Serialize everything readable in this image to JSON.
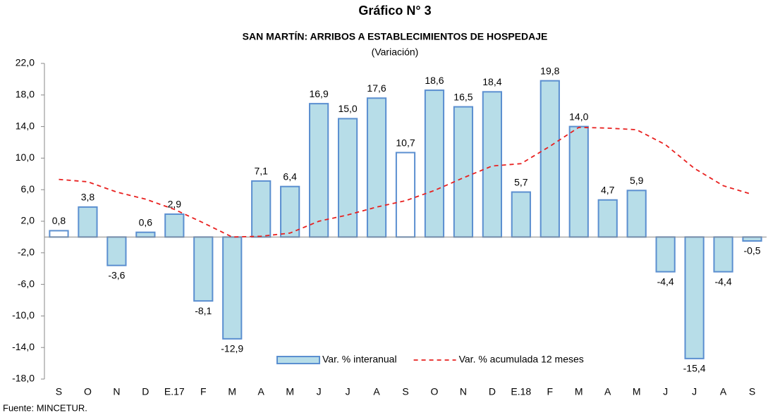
{
  "chart_data": {
    "type": "bar",
    "title": "Gráfico N° 3",
    "subtitle": "SAN MARTÍN: ARRIBOS A ESTABLECIMIENTOS DE HOSPEDAJE",
    "unit_note": "(Variación)",
    "source": "Fuente: MINCETUR.",
    "categories": [
      "S",
      "O",
      "N",
      "D",
      "E.17",
      "F",
      "M",
      "A",
      "M",
      "J",
      "J",
      "A",
      "S",
      "O",
      "N",
      "D",
      "E.18",
      "F",
      "M",
      "A",
      "M",
      "J",
      "J",
      "A",
      "S"
    ],
    "ylim": [
      -18,
      22
    ],
    "yticks": [
      {
        "value": -18,
        "label": "-18,0"
      },
      {
        "value": -14,
        "label": "-14,0"
      },
      {
        "value": -10,
        "label": "-10,0"
      },
      {
        "value": -6,
        "label": "-6,0"
      },
      {
        "value": -2,
        "label": "-2,0"
      },
      {
        "value": 2,
        "label": "2,0"
      },
      {
        "value": 6,
        "label": "6,0"
      },
      {
        "value": 10,
        "label": "10,0"
      },
      {
        "value": 14,
        "label": "14,0"
      },
      {
        "value": 18,
        "label": "18,0"
      },
      {
        "value": 22,
        "label": "22,0"
      }
    ],
    "series": [
      {
        "name": "Var. % interanual",
        "type": "bar",
        "color": "#b7dde8",
        "stroke": "#5b8fd0",
        "colors": [
          "#ffffff",
          "#b7dde8",
          "#b7dde8",
          "#b7dde8",
          "#b7dde8",
          "#b7dde8",
          "#b7dde8",
          "#b7dde8",
          "#b7dde8",
          "#b7dde8",
          "#b7dde8",
          "#b7dde8",
          "#ffffff",
          "#b7dde8",
          "#b7dde8",
          "#b7dde8",
          "#b7dde8",
          "#b7dde8",
          "#b7dde8",
          "#b7dde8",
          "#b7dde8",
          "#b7dde8",
          "#b7dde8",
          "#b7dde8",
          "#b7dde8"
        ],
        "values": [
          0.8,
          3.8,
          -3.6,
          0.6,
          2.9,
          -8.1,
          -12.9,
          7.1,
          6.4,
          16.9,
          15.0,
          17.6,
          10.7,
          18.6,
          16.5,
          18.4,
          5.7,
          19.8,
          14.0,
          4.7,
          5.9,
          -4.4,
          -15.4,
          -4.4,
          -0.5
        ],
        "value_labels": [
          "0,8",
          "3,8",
          "-3,6",
          "0,6",
          "2,9",
          "-8,1",
          "-12,9",
          "7,1",
          "6,4",
          "16,9",
          "15,0",
          "17,6",
          "10,7",
          "18,6",
          "16,5",
          "18,4",
          "5,7",
          "19,8",
          "14,0",
          "4,7",
          "5,9",
          "-4,4",
          "-15,4",
          "-4,4",
          "-0,5"
        ]
      },
      {
        "name": "Var. % acumulada 12 meses",
        "type": "line",
        "color": "#e8201f",
        "dashed": true,
        "values": [
          7.3,
          7.0,
          5.7,
          4.8,
          3.5,
          1.8,
          0.0,
          0.1,
          0.5,
          2.0,
          2.8,
          3.8,
          4.6,
          5.9,
          7.5,
          9.0,
          9.3,
          11.5,
          13.9,
          13.8,
          13.6,
          11.7,
          8.7,
          6.5,
          5.4
        ]
      }
    ]
  }
}
